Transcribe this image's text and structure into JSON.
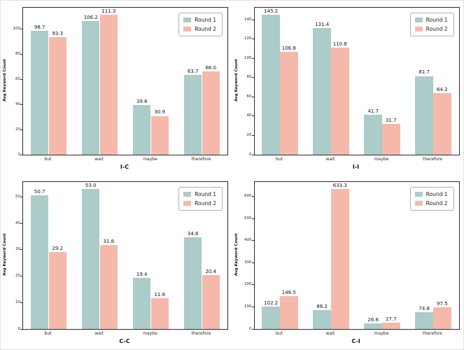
{
  "figure": {
    "background": "#ffffff",
    "series_colors": [
      "#abccc9",
      "#f5b9ac"
    ],
    "spine_color": "#2b2b2b",
    "text_color": "#1a1a1a",
    "legend_border_color": "#b0b0b0"
  },
  "chart_data": [
    {
      "type": "bar",
      "title": "",
      "xlabel": "I-C",
      "ylabel": "Avg Keyword Count",
      "categories": [
        "but",
        "wait",
        "maybe",
        "therefore"
      ],
      "series": [
        {
          "name": "Round 1",
          "values": [
            98.7,
            106.2,
            39.8,
            63.7
          ]
        },
        {
          "name": "Round 2",
          "values": [
            93.3,
            111.3,
            30.9,
            66.0
          ]
        }
      ],
      "ylim": [
        0,
        116.9
      ],
      "yticks": [
        0,
        20,
        40,
        60,
        80,
        100
      ],
      "legend_position": "upper right",
      "grid": false,
      "value_labels": true
    },
    {
      "type": "bar",
      "title": "",
      "xlabel": "I-I",
      "ylabel": "Avg Keyword Count",
      "categories": [
        "but",
        "wait",
        "maybe",
        "therefore"
      ],
      "series": [
        {
          "name": "Round 1",
          "values": [
            145.2,
            131.4,
            41.7,
            81.7
          ]
        },
        {
          "name": "Round 2",
          "values": [
            106.8,
            110.8,
            31.7,
            64.2
          ]
        }
      ],
      "ylim": [
        0,
        152.5
      ],
      "yticks": [
        0,
        20,
        40,
        60,
        80,
        100,
        120,
        140
      ],
      "legend_position": "upper right",
      "grid": false,
      "value_labels": true
    },
    {
      "type": "bar",
      "title": "",
      "xlabel": "C-C",
      "ylabel": "Avg Keyword Count",
      "categories": [
        "but",
        "wait",
        "maybe",
        "therefore"
      ],
      "series": [
        {
          "name": "Round 1",
          "values": [
            50.7,
            53.0,
            19.4,
            34.8
          ]
        },
        {
          "name": "Round 2",
          "values": [
            29.2,
            31.8,
            11.8,
            20.4
          ]
        }
      ],
      "ylim": [
        0,
        55.7
      ],
      "yticks": [
        0,
        10,
        20,
        30,
        40,
        50
      ],
      "legend_position": "upper right",
      "grid": false,
      "value_labels": true
    },
    {
      "type": "bar",
      "title": "",
      "xlabel": "C-I",
      "ylabel": "Avg Keyword Count",
      "categories": [
        "but",
        "wait",
        "maybe",
        "therefore"
      ],
      "series": [
        {
          "name": "Round 1",
          "values": [
            102.2,
            86.2,
            26.8,
            74.8
          ]
        },
        {
          "name": "Round 2",
          "values": [
            148.5,
            633.3,
            27.7,
            97.5
          ]
        }
      ],
      "ylim": [
        0,
        665
      ],
      "yticks": [
        0,
        100,
        200,
        300,
        400,
        500,
        600
      ],
      "legend_position": "upper right",
      "grid": false,
      "value_labels": true
    }
  ]
}
